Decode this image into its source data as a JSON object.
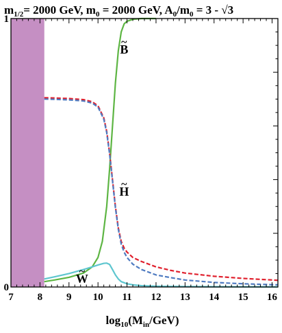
{
  "chart_data": {
    "type": "line",
    "title": {
      "m_half_base": "m",
      "m_half_sub": "1/2",
      "m_half_value": "= 2000 GeV, ",
      "m0_base": "m",
      "m0_sub": "0",
      "m0_value": " = 2000 GeV, ",
      "A0_base": "A",
      "A0_sub": "0",
      "ratio_mid": "/m",
      "ratio_sub": "0",
      "ratio_value": " = 3 - √3"
    },
    "xlabel": {
      "base": "log",
      "sub1": "10",
      "mid": "(M",
      "sub2": "in",
      "tail": "/GeV)"
    },
    "xlim": [
      7,
      16.2
    ],
    "ylim": [
      0,
      1
    ],
    "x_ticks": [
      7,
      8,
      9,
      10,
      11,
      12,
      13,
      14,
      15,
      16
    ],
    "y_tick_labels": [
      "0",
      "1"
    ],
    "grid": false,
    "excluded_band": {
      "x": [
        7,
        8.15
      ],
      "color": "#c58fc3"
    },
    "series_labels": [
      {
        "text": "B",
        "tilde": "~",
        "x": 10.9,
        "y": 0.87,
        "for": "bino"
      },
      {
        "text": "H",
        "tilde": "~",
        "x": 10.9,
        "y": 0.34,
        "for": "higgsino"
      },
      {
        "text": "W",
        "tilde": "~",
        "x": 9.45,
        "y": 0.015,
        "for": "wino"
      }
    ],
    "series": [
      {
        "key": "bino",
        "color": "#5db543",
        "dash": false,
        "x": [
          8.15,
          8.5,
          9.0,
          9.5,
          9.8,
          10.0,
          10.15,
          10.3,
          10.4,
          10.5,
          10.6,
          10.7,
          10.8,
          10.9,
          11.0,
          11.2,
          11.5,
          12.0
        ],
        "y": [
          0.02,
          0.026,
          0.036,
          0.052,
          0.075,
          0.11,
          0.17,
          0.3,
          0.44,
          0.6,
          0.76,
          0.88,
          0.95,
          0.98,
          0.99,
          0.997,
          1.0,
          1.0
        ]
      },
      {
        "key": "higgsino-red",
        "color": "#e0202d",
        "dash": true,
        "x": [
          8.15,
          8.5,
          9.0,
          9.5,
          9.8,
          10.0,
          10.2,
          10.3,
          10.4,
          10.5,
          10.6,
          10.7,
          10.8,
          10.9,
          11.0,
          11.2,
          11.5,
          12.0,
          12.5,
          13.0,
          14.0,
          15.0,
          16.2
        ],
        "y": [
          0.705,
          0.704,
          0.702,
          0.698,
          0.69,
          0.675,
          0.63,
          0.58,
          0.5,
          0.4,
          0.3,
          0.22,
          0.17,
          0.145,
          0.13,
          0.11,
          0.095,
          0.075,
          0.062,
          0.052,
          0.04,
          0.032,
          0.025
        ]
      },
      {
        "key": "higgsino-blue",
        "color": "#4f7bc1",
        "dash": true,
        "x": [
          8.15,
          8.5,
          9.0,
          9.5,
          9.8,
          10.0,
          10.2,
          10.3,
          10.4,
          10.5,
          10.6,
          10.7,
          10.8,
          10.9,
          11.0,
          11.2,
          11.5,
          12.0,
          12.5,
          13.0,
          14.0,
          15.0,
          16.2
        ],
        "y": [
          0.7,
          0.699,
          0.697,
          0.693,
          0.685,
          0.67,
          0.625,
          0.575,
          0.495,
          0.395,
          0.295,
          0.215,
          0.16,
          0.13,
          0.11,
          0.085,
          0.065,
          0.045,
          0.035,
          0.026,
          0.017,
          0.012,
          0.008
        ]
      },
      {
        "key": "wino",
        "color": "#5ec6cf",
        "dash": false,
        "x": [
          8.15,
          8.5,
          9.0,
          9.5,
          9.8,
          10.0,
          10.2,
          10.3,
          10.4,
          10.5,
          10.6,
          10.7,
          10.8,
          11.0,
          11.2,
          11.5,
          12.0,
          12.5,
          13.0,
          14.0,
          15.0,
          16.2
        ],
        "y": [
          0.03,
          0.038,
          0.05,
          0.065,
          0.075,
          0.082,
          0.088,
          0.089,
          0.084,
          0.065,
          0.045,
          0.03,
          0.02,
          0.012,
          0.008,
          0.005,
          0.003,
          0.002,
          0.0015,
          0.001,
          0.0008,
          0.0005
        ]
      }
    ]
  }
}
